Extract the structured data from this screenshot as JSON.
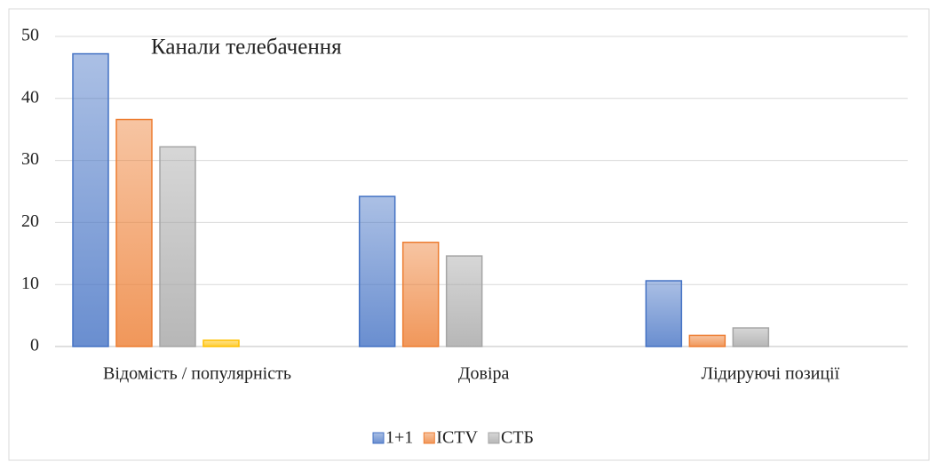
{
  "chart_data": {
    "type": "bar",
    "title": "Канали телебачення",
    "categories": [
      "Відомість / популярність",
      "Довіра",
      "Лідируючі позиції"
    ],
    "series": [
      {
        "name": "1+1",
        "color": "#4472c4",
        "values": [
          47.2,
          24.2,
          10.6
        ]
      },
      {
        "name": "ICTV",
        "color": "#ed7d31",
        "values": [
          36.6,
          16.8,
          1.8
        ]
      },
      {
        "name": "СТБ",
        "color": "#a5a5a5",
        "values": [
          32.2,
          14.6,
          3.0
        ]
      },
      {
        "color": "#ffc000",
        "values": [
          1.0,
          null,
          null
        ]
      }
    ],
    "ylim": [
      0,
      50
    ],
    "yticks": [
      0,
      10,
      20,
      30,
      40,
      50
    ],
    "grid": true,
    "legend": "bottom"
  }
}
